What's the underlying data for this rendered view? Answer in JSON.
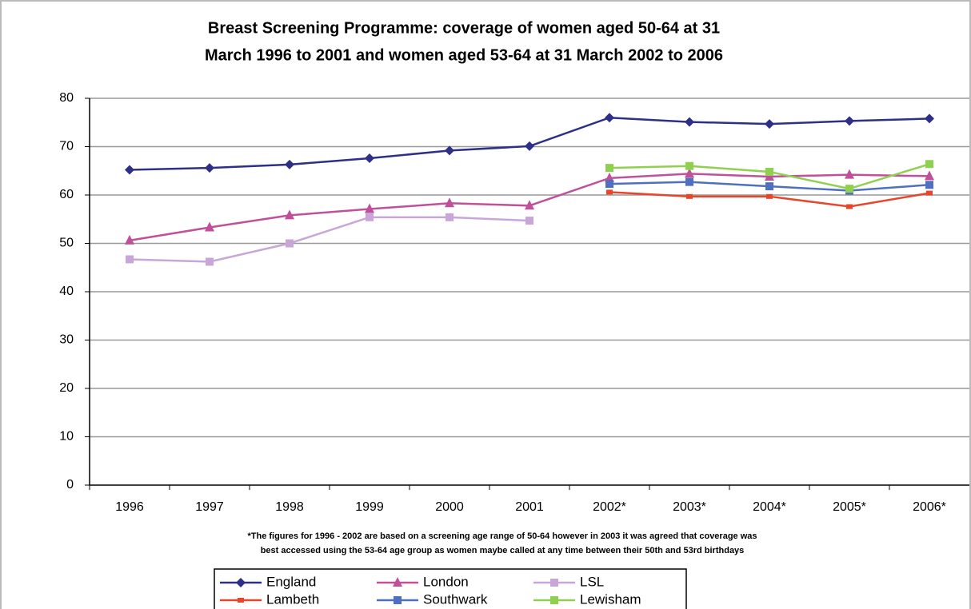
{
  "chart_data": {
    "type": "line",
    "title": [
      "Breast Screening Programme: coverage of women aged 50-64 at 31",
      "March 1996 to 2001 and women aged 53-64 at 31 March 2002 to 2006"
    ],
    "footnote": [
      "*The figures for 1996 - 2002 are based on a screening age range of 50-64 however in 2003 it was agreed that coverage was",
      "best accessed using the 53-64 age group as women maybe called at any time between their 50th and 53rd birthdays"
    ],
    "categories": [
      "1996",
      "1997",
      "1998",
      "1999",
      "2000",
      "2001",
      "2002*",
      "2003*",
      "2004*",
      "2005*",
      "2006*"
    ],
    "series": [
      {
        "name": "England",
        "color": "#2e2f86",
        "marker": "diamond",
        "values": [
          65.2,
          65.6,
          66.3,
          67.6,
          69.2,
          70.1,
          76.0,
          75.1,
          74.7,
          75.3,
          75.8
        ]
      },
      {
        "name": "London",
        "color": "#c0509a",
        "marker": "triangle",
        "values": [
          50.6,
          53.3,
          55.8,
          57.1,
          58.3,
          57.8,
          63.5,
          64.4,
          63.8,
          64.2,
          63.9
        ]
      },
      {
        "name": "LSL",
        "color": "#c9a6d8",
        "marker": "square",
        "values": [
          46.7,
          46.2,
          50.0,
          55.4,
          55.4,
          54.7,
          null,
          null,
          null,
          null,
          null
        ]
      },
      {
        "name": "Lambeth",
        "color": "#e8452a",
        "marker": "dash",
        "values": [
          null,
          null,
          null,
          null,
          null,
          null,
          60.6,
          59.7,
          59.7,
          57.6,
          60.4
        ]
      },
      {
        "name": "Southwark",
        "color": "#4f6fc0",
        "marker": "square",
        "values": [
          null,
          null,
          null,
          null,
          null,
          null,
          62.3,
          62.7,
          61.8,
          60.9,
          62.1
        ]
      },
      {
        "name": "Lewisham",
        "color": "#8fd14f",
        "marker": "square",
        "values": [
          null,
          null,
          null,
          null,
          null,
          null,
          65.6,
          66.0,
          64.8,
          61.3,
          66.4
        ]
      }
    ],
    "ylim": [
      0,
      80
    ],
    "yticks": [
      0,
      10,
      20,
      30,
      40,
      50,
      60,
      70,
      80
    ],
    "grid": true
  }
}
